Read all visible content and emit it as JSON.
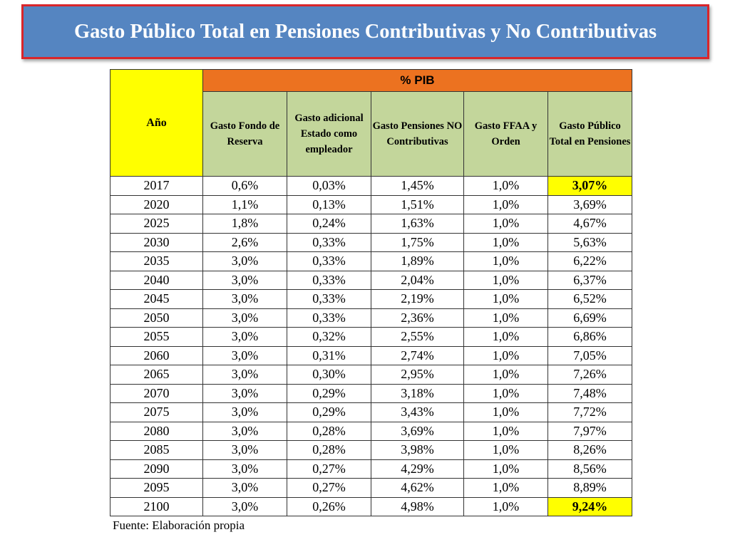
{
  "title": "Gasto Público Total en Pensiones Contributivas y No Contributivas",
  "table": {
    "year_header": "Año",
    "group_header": "% PIB",
    "columns": [
      "Gasto Fondo de Reserva",
      "Gasto adicional Estado como empleador",
      "Gasto Pensiones NO Contributivas",
      "Gasto FFAA y Orden",
      "Gasto Público Total en Pensiones"
    ],
    "rows": [
      {
        "year": "2017",
        "values": [
          "0,6%",
          "0,03%",
          "1,45%",
          "1,0%",
          "3,07%"
        ],
        "highlight": true
      },
      {
        "year": "2020",
        "values": [
          "1,1%",
          "0,13%",
          "1,51%",
          "1,0%",
          "3,69%"
        ],
        "highlight": false
      },
      {
        "year": "2025",
        "values": [
          "1,8%",
          "0,24%",
          "1,63%",
          "1,0%",
          "4,67%"
        ],
        "highlight": false
      },
      {
        "year": "2030",
        "values": [
          "2,6%",
          "0,33%",
          "1,75%",
          "1,0%",
          "5,63%"
        ],
        "highlight": false
      },
      {
        "year": "2035",
        "values": [
          "3,0%",
          "0,33%",
          "1,89%",
          "1,0%",
          "6,22%"
        ],
        "highlight": false
      },
      {
        "year": "2040",
        "values": [
          "3,0%",
          "0,33%",
          "2,04%",
          "1,0%",
          "6,37%"
        ],
        "highlight": false
      },
      {
        "year": "2045",
        "values": [
          "3,0%",
          "0,33%",
          "2,19%",
          "1,0%",
          "6,52%"
        ],
        "highlight": false
      },
      {
        "year": "2050",
        "values": [
          "3,0%",
          "0,33%",
          "2,36%",
          "1,0%",
          "6,69%"
        ],
        "highlight": false
      },
      {
        "year": "2055",
        "values": [
          "3,0%",
          "0,32%",
          "2,55%",
          "1,0%",
          "6,86%"
        ],
        "highlight": false
      },
      {
        "year": "2060",
        "values": [
          "3,0%",
          "0,31%",
          "2,74%",
          "1,0%",
          "7,05%"
        ],
        "highlight": false
      },
      {
        "year": "2065",
        "values": [
          "3,0%",
          "0,30%",
          "2,95%",
          "1,0%",
          "7,26%"
        ],
        "highlight": false
      },
      {
        "year": "2070",
        "values": [
          "3,0%",
          "0,29%",
          "3,18%",
          "1,0%",
          "7,48%"
        ],
        "highlight": false
      },
      {
        "year": "2075",
        "values": [
          "3,0%",
          "0,29%",
          "3,43%",
          "1,0%",
          "7,72%"
        ],
        "highlight": false
      },
      {
        "year": "2080",
        "values": [
          "3,0%",
          "0,28%",
          "3,69%",
          "1,0%",
          "7,97%"
        ],
        "highlight": false
      },
      {
        "year": "2085",
        "values": [
          "3,0%",
          "0,28%",
          "3,98%",
          "1,0%",
          "8,26%"
        ],
        "highlight": false
      },
      {
        "year": "2090",
        "values": [
          "3,0%",
          "0,27%",
          "4,29%",
          "1,0%",
          "8,56%"
        ],
        "highlight": false
      },
      {
        "year": "2095",
        "values": [
          "3,0%",
          "0,27%",
          "4,62%",
          "1,0%",
          "8,89%"
        ],
        "highlight": false
      },
      {
        "year": "2100",
        "values": [
          "3,0%",
          "0,26%",
          "4,98%",
          "1,0%",
          "9,24%"
        ],
        "highlight": true
      }
    ]
  },
  "source": "Fuente: Elaboración propia",
  "colors": {
    "title_bg": "#5585c1",
    "title_border": "#d9262b",
    "year_header_bg": "#ffff00",
    "group_header_bg": "#ec7220",
    "column_header_bg": "#c3d69b",
    "highlight_bg": "#ffff00"
  }
}
